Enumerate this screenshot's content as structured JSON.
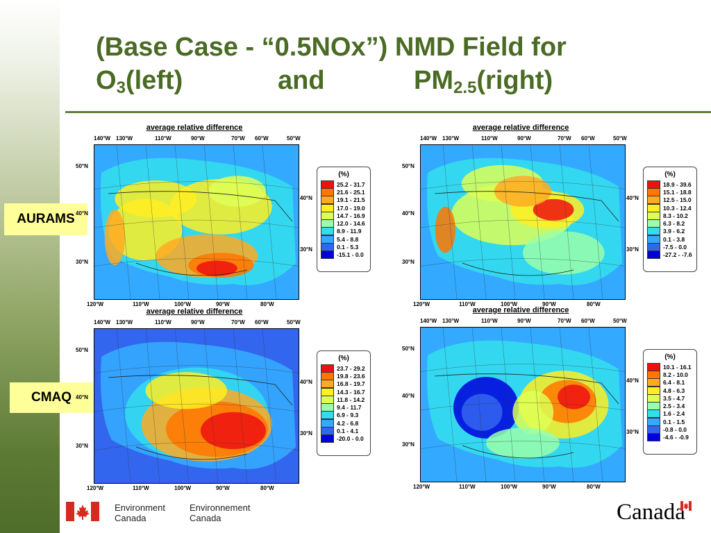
{
  "title": {
    "line1": "(Base Case - “0.5NOx”) NMD Field for",
    "o3_main": "O",
    "o3_sub": "3",
    "left": " (left)",
    "and": "and",
    "pm_main": "PM",
    "pm_sub": "2.5",
    "right": " (right)"
  },
  "row_labels": {
    "aurams": "AURAMS",
    "cmaq": "CMAQ"
  },
  "panel_title": "average relative difference",
  "top_axis": [
    "140°W",
    "130°W",
    "110°W",
    "90°W",
    "70°W",
    "60°W",
    "50°W"
  ],
  "bottom_axis": [
    "120°W",
    "110°W",
    "100°W",
    "90°W",
    "80°W"
  ],
  "left_axis": [
    "50°N",
    "40°N",
    "30°N"
  ],
  "right_axis": [
    "40°N",
    "30°N"
  ],
  "legend_title": "(%)",
  "legend_colors": [
    "#ee1111",
    "#ff7700",
    "#ffaa22",
    "#ffee22",
    "#ddff55",
    "#99ffaa",
    "#33ddee",
    "#33aaff",
    "#3366ee",
    "#0000dd"
  ],
  "legends": {
    "aurams_o3": [
      "25.2 - 31.7",
      "21.6 - 25.1",
      "19.1 - 21.5",
      "17.0 - 19.0",
      "14.7 - 16.9",
      "12.0 - 14.6",
      "8.9 - 11.9",
      "5.4 - 8.8",
      "0.1 - 5.3",
      "-15.1 - 0.0"
    ],
    "aurams_pm": [
      "18.9 - 39.6",
      "15.1 - 18.8",
      "12.5 - 15.0",
      "10.3 - 12.4",
      "8.3 - 10.2",
      "6.3 - 8.2",
      "3.9 - 6.2",
      "0.1 - 3.8",
      "-7.5 - 0.0",
      "-27.2 - -7.6"
    ],
    "cmaq_o3": [
      "23.7 - 29.2",
      "19.8 - 23.6",
      "16.8 - 19.7",
      "14.3 - 16.7",
      "11.8 - 14.2",
      "9.4 - 11.7",
      "6.9 - 9.3",
      "4.2 - 6.8",
      "0.1 - 4.1",
      "-20.0 - 0.0"
    ],
    "cmaq_pm": [
      "10.1 - 16.1",
      "8.2 - 10.0",
      "6.4 - 8.1",
      "4.8 - 6.3",
      "3.5 - 4.7",
      "2.5 - 3.4",
      "1.6 - 2.4",
      "0.1 - 1.5",
      "-0.8 - 0.0",
      "-4.6 - -0.9"
    ]
  },
  "footer": {
    "env_en_1": "Environment",
    "env_en_2": "Canada",
    "env_fr_1": "Environnement",
    "env_fr_2": "Canada",
    "wordmark": "Canada"
  }
}
